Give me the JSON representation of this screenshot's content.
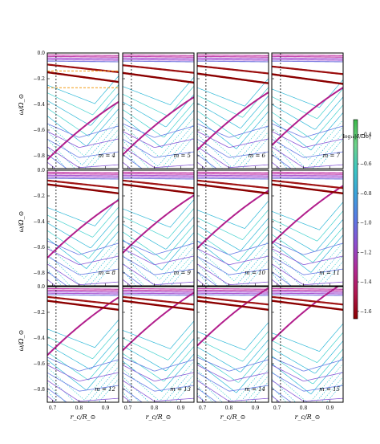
{
  "chart_data": {
    "type": "line",
    "layout": "3x4 grid of panels, shared axes",
    "xlabel": "r_c/R_⊙",
    "ylabel": "ω/Ω_⊙",
    "xlim": [
      0.68,
      0.95
    ],
    "ylim": [
      -0.9,
      0.0
    ],
    "x_ticks": [
      0.7,
      0.8,
      0.9
    ],
    "x_tick_labels": [
      "0.7",
      "0.8",
      "0.9"
    ],
    "y_ticks": [
      0.0,
      -0.2,
      -0.4,
      -0.6,
      -0.8
    ],
    "y_tick_labels": [
      "0.0",
      "−0.2",
      "−0.4",
      "−0.6",
      "−0.8"
    ],
    "reference_line_x": 0.713,
    "panel_labels": [
      "m = 4",
      "m = 5",
      "m = 6",
      "m = 7",
      "m = 8",
      "m = 9",
      "m = 10",
      "m = 11",
      "m = 12",
      "m = 13",
      "m = 14",
      "m = 15"
    ],
    "m_values": [
      4,
      5,
      6,
      7,
      8,
      9,
      10,
      11,
      12,
      13,
      14,
      15
    ],
    "first_panel_dashed_levels": [
      -0.14,
      -0.27
    ],
    "colorbar": {
      "label": "log₁₀|σ/Ω⊙|",
      "ticks": [
        -0.4,
        -0.6,
        -0.8,
        -1.0,
        -1.2,
        -1.4,
        -1.6
      ],
      "tick_labels": [
        "−0.4",
        "−0.6",
        "−0.8",
        "−1.0",
        "−1.2",
        "−1.4",
        "−1.6"
      ],
      "range": [
        -1.65,
        -0.3
      ],
      "colormap": [
        "#8b0000",
        "#b0174f",
        "#b22a96",
        "#8f4ed0",
        "#5b79e6",
        "#3ba3dc",
        "#3cc7c3",
        "#6fd48a",
        "#3cb84a"
      ]
    },
    "series": [
      {
        "kind": "thick-dark-red-upper",
        "y_at_min": -0.13,
        "slope": -0.22,
        "color": "#9b0d0d"
      },
      {
        "kind": "thick-dark-red-lower",
        "y_at_min": -0.19,
        "slope": -0.26,
        "color": "#8b0000"
      },
      {
        "kind": "thick-magenta",
        "y_at_min": -0.52,
        "curvature": 0.9,
        "color": "#b21e8c"
      },
      {
        "kind": "surface-magenta-band",
        "y_range": [
          -0.02,
          -0.06
        ],
        "color": "#c23aa8"
      },
      {
        "kind": "purple-family",
        "count": 6,
        "color": "#6a5acd"
      },
      {
        "kind": "cyan-family",
        "count": 9,
        "color": "#35c4d4"
      }
    ]
  }
}
